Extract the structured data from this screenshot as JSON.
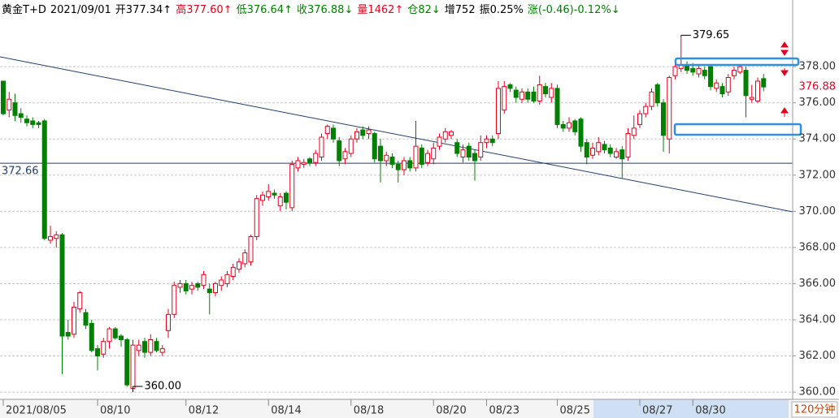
{
  "chart_data": {
    "type": "candlestick",
    "header": [
      {
        "text": "黄金T+D",
        "color": "#000000"
      },
      {
        "text": "2021/09/01",
        "color": "#000000"
      },
      {
        "text": "开377.34↑",
        "color": "#000000"
      },
      {
        "text": "高377.60↑",
        "color": "#e8001c"
      },
      {
        "text": "低376.64↑",
        "color": "#008000"
      },
      {
        "text": "收376.88↓",
        "color": "#008000"
      },
      {
        "text": "量1462↑",
        "color": "#e8001c"
      },
      {
        "text": "仓82↓",
        "color": "#008000"
      },
      {
        "text": "增752",
        "color": "#000000"
      },
      {
        "text": "振0.25%",
        "color": "#000000"
      },
      {
        "text": "涨(-0.46)-0.12%↓",
        "color": "#008000"
      }
    ],
    "period": "120分钟",
    "categories": [
      "2021/08/05",
      null,
      null,
      null,
      null,
      null,
      null,
      null,
      null,
      null,
      null,
      null,
      null,
      null,
      null,
      null,
      "08/10",
      null,
      null,
      null,
      null,
      null,
      null,
      null,
      null,
      null,
      null,
      null,
      null,
      null,
      null,
      "08/12",
      null,
      null,
      null,
      null,
      null,
      null,
      null,
      null,
      null,
      null,
      null,
      null,
      null,
      "08/14",
      null,
      null,
      null,
      null,
      null,
      null,
      null,
      null,
      null,
      null,
      null,
      null,
      null,
      "08/18",
      null,
      null,
      null,
      null,
      null,
      null,
      null,
      null,
      null,
      null,
      null,
      null,
      null,
      "08/20",
      null,
      null,
      null,
      null,
      null,
      null,
      null,
      null,
      "08/23",
      null,
      null,
      null,
      null,
      null,
      null,
      null,
      null,
      null,
      null,
      null,
      "08/25",
      null,
      null,
      null,
      null,
      null,
      null,
      null,
      null,
      null,
      null,
      null,
      null,
      null,
      "08/27",
      null,
      null,
      null,
      null,
      null,
      null,
      null,
      null,
      "08/30",
      null,
      null,
      null,
      null,
      null,
      null,
      null,
      null,
      null,
      null,
      null,
      null
    ],
    "open": [
      377.2,
      375.6,
      376.0,
      375.4,
      375.1,
      375.0,
      374.9,
      375.0,
      368.4,
      368.5,
      368.7,
      363.3,
      363.2,
      364.6,
      364.4,
      363.8,
      362.4,
      362.1,
      362.8,
      363.5,
      363.1,
      362.9,
      360.2,
      362.3,
      362.8,
      362.2,
      362.8,
      362.2,
      363.4,
      364.3,
      365.8,
      366.0,
      365.7,
      366.0,
      365.9,
      365.7,
      365.5,
      365.9,
      366.0,
      366.4,
      366.8,
      367.1,
      367.2,
      368.6,
      370.6,
      370.8,
      371.0,
      370.3,
      371.0,
      370.2,
      372.4,
      372.6,
      372.9,
      372.7,
      373.0,
      374.3,
      374.6,
      373.9,
      372.9,
      373.2,
      374.0,
      374.5,
      374.3,
      374.3,
      373.6,
      372.8,
      373.0,
      372.6,
      372.3,
      372.8,
      372.4,
      373.5,
      372.7,
      372.9,
      373.6,
      374.0,
      374.2,
      373.8,
      373.0,
      373.6,
      373.2,
      373.0,
      373.8,
      374.0,
      374.3,
      375.6,
      377.0,
      376.7,
      376.2,
      376.6,
      376.6,
      376.1,
      376.9,
      376.3,
      376.8,
      374.8,
      374.6,
      375.0,
      375.1,
      373.8,
      373.1,
      373.3,
      373.7,
      373.5,
      373.0,
      373.4,
      373.0,
      374.2,
      374.8,
      375.4,
      375.8,
      377.0,
      376.0,
      374.0,
      377.5,
      377.9,
      378.1,
      377.9,
      377.6,
      377.8,
      378.0,
      376.8,
      376.9,
      376.6,
      377.5,
      377.7,
      377.8,
      376.2,
      376.1,
      377.34
    ],
    "high": [
      377.2,
      376.6,
      376.5,
      375.7,
      375.3,
      375.2,
      375.0,
      375.1,
      369.2,
      368.9,
      368.8,
      364.0,
      365.0,
      365.6,
      364.6,
      364.0,
      362.6,
      363.0,
      363.6,
      363.6,
      363.2,
      363.0,
      362.9,
      362.9,
      363.0,
      363.2,
      363.0,
      362.6,
      364.6,
      366.1,
      366.2,
      366.2,
      366.1,
      366.1,
      366.7,
      366.0,
      366.1,
      366.4,
      366.7,
      367.1,
      367.4,
      367.9,
      368.7,
      370.9,
      371.1,
      371.5,
      371.2,
      371.0,
      371.1,
      372.8,
      373.0,
      372.9,
      373.0,
      373.4,
      374.3,
      374.8,
      374.8,
      374.1,
      373.5,
      374.2,
      374.6,
      374.7,
      374.7,
      374.4,
      374.0,
      373.3,
      373.2,
      372.8,
      373.0,
      373.0,
      375.0,
      373.7,
      373.4,
      373.8,
      374.3,
      374.6,
      374.5,
      374.0,
      373.7,
      373.8,
      373.4,
      374.2,
      374.2,
      374.2,
      377.2,
      377.2,
      377.1,
      376.9,
      376.8,
      376.8,
      376.9,
      377.5,
      377.1,
      377.1,
      377.0,
      375.0,
      375.2,
      375.1,
      375.2,
      374.0,
      373.8,
      374.1,
      373.9,
      373.7,
      373.5,
      373.6,
      374.6,
      375.3,
      375.6,
      376.0,
      376.8,
      377.1,
      376.2,
      377.5,
      378.2,
      379.65,
      378.3,
      378.2,
      378.1,
      378.0,
      378.1,
      377.3,
      377.1,
      377.6,
      378.0,
      378.1,
      378.0,
      377.0,
      377.4,
      377.6
    ],
    "low": [
      375.3,
      375.2,
      375.0,
      374.9,
      374.7,
      374.6,
      374.6,
      368.4,
      368.2,
      368.0,
      361.0,
      362.9,
      363.0,
      364.4,
      363.5,
      362.2,
      361.2,
      361.9,
      362.4,
      362.9,
      362.5,
      360.3,
      360.0,
      362.0,
      361.9,
      362.0,
      362.2,
      362.0,
      363.0,
      364.1,
      365.5,
      365.4,
      365.4,
      365.6,
      365.7,
      364.3,
      365.3,
      365.6,
      365.8,
      366.2,
      366.6,
      366.9,
      367.0,
      368.4,
      370.3,
      370.6,
      370.7,
      370.0,
      370.1,
      370.0,
      372.2,
      372.4,
      372.5,
      372.5,
      372.8,
      374.0,
      373.8,
      372.5,
      372.6,
      373.0,
      373.8,
      374.0,
      374.0,
      372.7,
      371.6,
      372.5,
      372.4,
      371.6,
      372.0,
      372.2,
      372.2,
      372.4,
      372.5,
      372.6,
      373.4,
      373.8,
      374.0,
      373.0,
      372.7,
      372.8,
      371.7,
      372.8,
      373.5,
      373.6,
      374.0,
      375.4,
      376.6,
      376.0,
      376.0,
      376.0,
      376.0,
      375.9,
      376.3,
      376.0,
      374.6,
      374.4,
      374.4,
      374.2,
      373.3,
      372.6,
      372.9,
      373.1,
      373.2,
      373.0,
      372.9,
      371.8,
      372.8,
      374.0,
      374.6,
      375.2,
      375.6,
      375.8,
      373.3,
      373.2,
      377.3,
      377.7,
      377.6,
      377.5,
      377.4,
      377.3,
      376.7,
      376.6,
      376.3,
      376.4,
      377.3,
      377.6,
      375.2,
      376.0,
      376.0,
      376.64
    ],
    "close": [
      375.4,
      376.2,
      375.3,
      375.2,
      374.9,
      374.8,
      374.8,
      368.5,
      368.6,
      368.7,
      363.1,
      363.1,
      364.7,
      365.5,
      363.7,
      362.3,
      362.0,
      362.8,
      363.5,
      363.0,
      362.9,
      360.4,
      362.6,
      362.6,
      362.2,
      362.9,
      362.3,
      362.4,
      364.3,
      365.9,
      366.0,
      365.6,
      365.9,
      365.8,
      366.5,
      365.5,
      366.0,
      366.2,
      366.5,
      366.9,
      367.2,
      367.7,
      368.6,
      370.7,
      370.9,
      371.1,
      370.9,
      370.8,
      370.5,
      372.6,
      372.8,
      372.7,
      372.7,
      373.2,
      374.1,
      374.7,
      374.0,
      372.8,
      373.3,
      374.0,
      374.4,
      374.2,
      374.5,
      372.9,
      372.8,
      373.1,
      372.6,
      372.3,
      372.8,
      372.4,
      373.6,
      372.6,
      373.2,
      373.5,
      374.1,
      374.4,
      374.4,
      373.2,
      373.4,
      373.0,
      372.8,
      373.8,
      374.0,
      373.8,
      376.8,
      376.9,
      376.8,
      376.3,
      376.6,
      376.2,
      376.1,
      377.0,
      376.5,
      376.8,
      374.8,
      374.6,
      374.9,
      374.4,
      373.6,
      373.0,
      373.5,
      373.8,
      373.4,
      373.2,
      373.3,
      372.9,
      374.3,
      374.6,
      375.4,
      375.8,
      376.6,
      376.0,
      374.2,
      377.4,
      378.0,
      378.1,
      377.8,
      377.7,
      377.9,
      377.5,
      376.9,
      377.1,
      376.5,
      377.4,
      377.8,
      378.0,
      376.4,
      376.3,
      377.2,
      376.88
    ],
    "up_color": "#e8001c",
    "down_color": "#008000",
    "ylim": [
      359.6,
      380.7
    ],
    "yticks": [
      {
        "value": 360,
        "label": "360.00"
      },
      {
        "value": 362,
        "label": "362.00"
      },
      {
        "value": 364,
        "label": "364.00"
      },
      {
        "value": 366,
        "label": "366.00"
      },
      {
        "value": 368,
        "label": "368.00"
      },
      {
        "value": 370,
        "label": "370.00"
      },
      {
        "value": 372,
        "label": "372.00"
      },
      {
        "value": 374,
        "label": "374.00"
      },
      {
        "value": 376,
        "label": "376.00"
      },
      {
        "value": 378,
        "label": "378.00"
      }
    ],
    "grid": true,
    "hline": {
      "value": 372.66,
      "label": "372.66",
      "color": "#1f3f6f"
    },
    "last_price": {
      "value": 376.88,
      "label": "376.88",
      "color": "#e8001c"
    },
    "annotations": [
      {
        "value": 379.65,
        "label": "379.65"
      },
      {
        "value": 360,
        "label": "360.00"
      }
    ]
  }
}
